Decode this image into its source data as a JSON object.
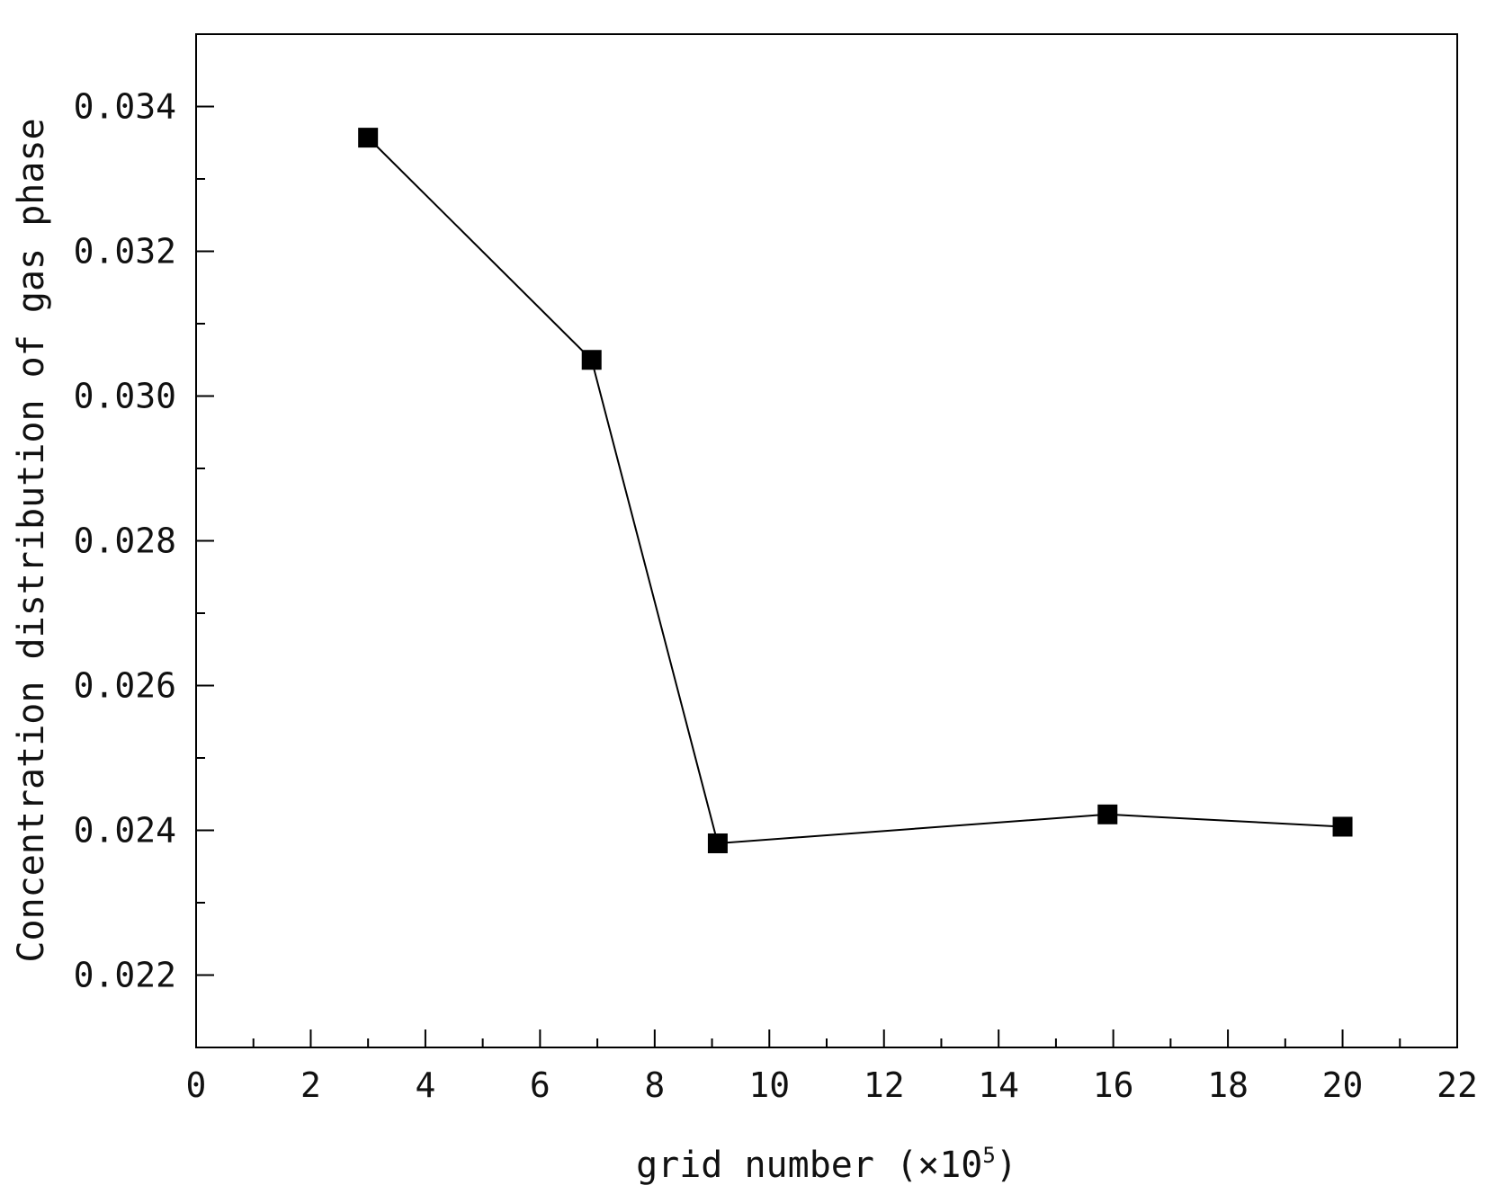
{
  "chart_data": {
    "type": "line",
    "title": "",
    "xlabel": "grid number (×10",
    "xlabel_exponent": "5",
    "xlabel_close": ")",
    "ylabel": "Concentration distribution of gas phase",
    "xlim": [
      0,
      22
    ],
    "ylim": [
      0.021,
      0.035
    ],
    "x_ticks": [
      0,
      2,
      4,
      6,
      8,
      10,
      12,
      14,
      16,
      18,
      20,
      22
    ],
    "x_tick_labels": [
      "0",
      "2",
      "4",
      "6",
      "8",
      "10",
      "12",
      "14",
      "16",
      "18",
      "20",
      "22"
    ],
    "y_ticks": [
      0.022,
      0.024,
      0.026,
      0.028,
      0.03,
      0.032,
      0.034
    ],
    "y_tick_labels": [
      "0.022",
      "0.024",
      "0.026",
      "0.028",
      "0.030",
      "0.032",
      "0.034"
    ],
    "grid": false,
    "marker": "square",
    "line_color": "#000000",
    "marker_color": "#000000",
    "series": [
      {
        "x": [
          3,
          6.9,
          9.1,
          15.9,
          20
        ],
        "values": [
          0.03357,
          0.0305,
          0.02382,
          0.02422,
          0.02405
        ]
      }
    ]
  }
}
